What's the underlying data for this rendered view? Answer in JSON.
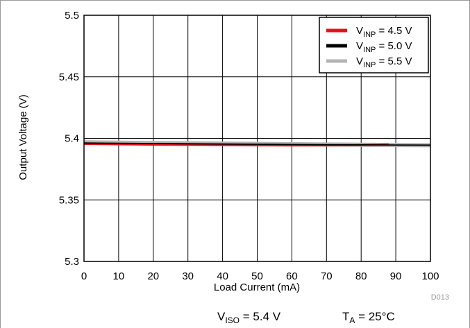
{
  "chart_data": {
    "type": "line",
    "xlabel": "Load Current (mA)",
    "ylabel": "Output Voltage (V)",
    "xlim": [
      0,
      100
    ],
    "ylim": [
      5.3,
      5.5
    ],
    "x_ticks": [
      "0",
      "10",
      "20",
      "30",
      "40",
      "50",
      "60",
      "70",
      "80",
      "90",
      "100"
    ],
    "y_ticks": [
      "5.3",
      "5.35",
      "5.4",
      "5.45",
      "5.5"
    ],
    "grid": true,
    "legend_position": "top-right",
    "series": [
      {
        "name": {
          "base": "V",
          "sub": "INP",
          "rest": " = 4.5 V"
        },
        "color": "#e8101a",
        "x": [
          0,
          10,
          20,
          30,
          40,
          50,
          60,
          70,
          80,
          88
        ],
        "y": [
          5.3955,
          5.3952,
          5.3949,
          5.3947,
          5.3945,
          5.3943,
          5.3942,
          5.3943,
          5.3946,
          5.395
        ]
      },
      {
        "name": {
          "base": "V",
          "sub": "INP",
          "rest": " = 5.0 V"
        },
        "color": "#000000",
        "x": [
          0,
          10,
          20,
          30,
          40,
          50,
          60,
          70,
          80,
          90,
          100
        ],
        "y": [
          5.3962,
          5.396,
          5.3958,
          5.3956,
          5.3954,
          5.3952,
          5.395,
          5.3948,
          5.3947,
          5.3946,
          5.3945
        ]
      },
      {
        "name": {
          "base": "V",
          "sub": "INP",
          "rest": " = 5.5 V"
        },
        "color": "#b4b4b4",
        "x": [
          0,
          10,
          20,
          30,
          40,
          50,
          60,
          70,
          80,
          90,
          100
        ],
        "y": [
          5.3968,
          5.3965,
          5.3962,
          5.396,
          5.3957,
          5.3955,
          5.3952,
          5.395,
          5.3948,
          5.3946,
          5.3944
        ]
      }
    ],
    "figure_id": "D013",
    "annotations": [
      {
        "base": "V",
        "sub": "ISO",
        "rest": " = 5.4 V"
      },
      {
        "base": "T",
        "sub": "A",
        "rest": " = 25°C"
      }
    ]
  }
}
